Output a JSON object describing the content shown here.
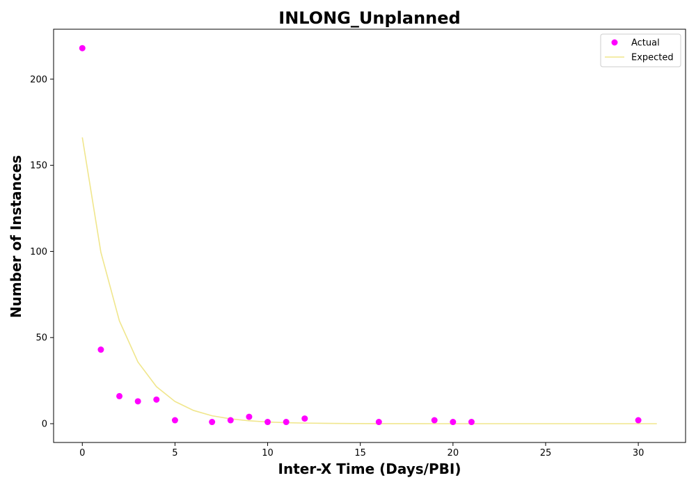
{
  "chart_data": {
    "type": "scatter",
    "title": "INLONG_Unplanned",
    "xlabel": "Inter-X Time (Days/PBI)",
    "ylabel": "Number of Instances",
    "xlim": [
      -1.55,
      32.55
    ],
    "ylim": [
      -10.9,
      229.0
    ],
    "xticks": [
      0,
      5,
      10,
      15,
      20,
      25,
      30
    ],
    "yticks": [
      0,
      50,
      100,
      150,
      200
    ],
    "grid": false,
    "legend_position": "top-right",
    "series": [
      {
        "name": "Actual",
        "kind": "scatter",
        "color": "#ff00ff",
        "points": [
          {
            "x": 0,
            "y": 218
          },
          {
            "x": 1,
            "y": 43
          },
          {
            "x": 2,
            "y": 16
          },
          {
            "x": 3,
            "y": 13
          },
          {
            "x": 4,
            "y": 14
          },
          {
            "x": 5,
            "y": 2
          },
          {
            "x": 7,
            "y": 1
          },
          {
            "x": 8,
            "y": 2
          },
          {
            "x": 9,
            "y": 4
          },
          {
            "x": 10,
            "y": 1
          },
          {
            "x": 11,
            "y": 1
          },
          {
            "x": 12,
            "y": 3
          },
          {
            "x": 16,
            "y": 1
          },
          {
            "x": 19,
            "y": 2
          },
          {
            "x": 20,
            "y": 1
          },
          {
            "x": 21,
            "y": 1
          },
          {
            "x": 30,
            "y": 2
          }
        ]
      },
      {
        "name": "Expected",
        "kind": "line",
        "color": "#f0e68c",
        "points": [
          {
            "x": 0,
            "y": 166.2
          },
          {
            "x": 1,
            "y": 99.6
          },
          {
            "x": 2,
            "y": 59.7
          },
          {
            "x": 3,
            "y": 35.8
          },
          {
            "x": 4,
            "y": 21.5
          },
          {
            "x": 5,
            "y": 12.9
          },
          {
            "x": 6,
            "y": 7.7
          },
          {
            "x": 7,
            "y": 4.6
          },
          {
            "x": 8,
            "y": 2.8
          },
          {
            "x": 9,
            "y": 1.7
          },
          {
            "x": 10,
            "y": 1.0
          },
          {
            "x": 11,
            "y": 0.6
          },
          {
            "x": 12,
            "y": 0.36
          },
          {
            "x": 13,
            "y": 0.22
          },
          {
            "x": 14,
            "y": 0.13
          },
          {
            "x": 15,
            "y": 0.08
          },
          {
            "x": 16,
            "y": 0.05
          },
          {
            "x": 17,
            "y": 0.03
          },
          {
            "x": 18,
            "y": 0.02
          },
          {
            "x": 19,
            "y": 0.01
          },
          {
            "x": 20,
            "y": 0.0
          },
          {
            "x": 21,
            "y": 0.0
          },
          {
            "x": 22,
            "y": 0.0
          },
          {
            "x": 23,
            "y": 0.0
          },
          {
            "x": 24,
            "y": 0.0
          },
          {
            "x": 25,
            "y": 0.0
          },
          {
            "x": 26,
            "y": 0.0
          },
          {
            "x": 27,
            "y": 0.0
          },
          {
            "x": 28,
            "y": 0.0
          },
          {
            "x": 29,
            "y": 0.0
          },
          {
            "x": 30,
            "y": 0.0
          },
          {
            "x": 31,
            "y": 0.0
          }
        ]
      }
    ]
  }
}
